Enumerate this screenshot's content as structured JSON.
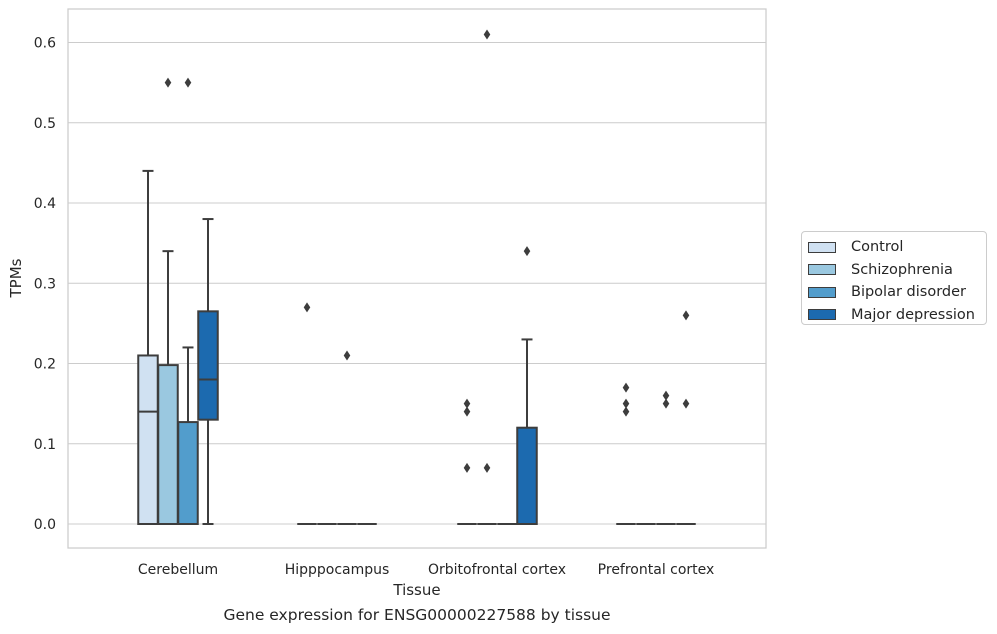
{
  "chart_data": {
    "type": "box",
    "xlabel": "Tissue",
    "ylabel": "TPMs",
    "caption": "Gene expression for ENSG00000227588 by tissue",
    "categories": [
      "Cerebellum",
      "Hipppocampus",
      "Orbitofrontal cortex",
      "Prefrontal cortex"
    ],
    "ylim": [
      -0.03,
      0.645
    ],
    "yticks": [
      0.0,
      0.1,
      0.2,
      0.3,
      0.4,
      0.5,
      0.6
    ],
    "ytick_labels": [
      "0.0",
      "0.1",
      "0.2",
      "0.3",
      "0.4",
      "0.5",
      "0.6"
    ],
    "grid": "horizontal",
    "legend_position": "right",
    "series": [
      {
        "name": "Control",
        "color": "#d0e1f2",
        "boxes": [
          {
            "min": 0.0,
            "q1": 0.0,
            "median": 0.14,
            "q3": 0.21,
            "max": 0.44,
            "outliers": []
          },
          {
            "min": 0.0,
            "q1": 0.0,
            "median": 0.0,
            "q3": 0.0,
            "max": 0.0,
            "outliers": [
              0.27
            ]
          },
          {
            "min": 0.0,
            "q1": 0.0,
            "median": 0.0,
            "q3": 0.0,
            "max": 0.0,
            "outliers": [
              0.15,
              0.14,
              0.07
            ]
          },
          {
            "min": 0.0,
            "q1": 0.0,
            "median": 0.0,
            "q3": 0.0,
            "max": 0.0,
            "outliers": [
              0.17,
              0.15,
              0.14
            ]
          }
        ]
      },
      {
        "name": "Schizophrenia",
        "color": "#9ac8e0",
        "boxes": [
          {
            "min": 0.0,
            "q1": 0.0,
            "median": 0.0,
            "q3": 0.198,
            "max": 0.34,
            "outliers": [
              0.55
            ]
          },
          {
            "min": 0.0,
            "q1": 0.0,
            "median": 0.0,
            "q3": 0.0,
            "max": 0.0,
            "outliers": []
          },
          {
            "min": 0.0,
            "q1": 0.0,
            "median": 0.0,
            "q3": 0.0,
            "max": 0.0,
            "outliers": [
              0.61,
              0.07
            ]
          },
          {
            "min": 0.0,
            "q1": 0.0,
            "median": 0.0,
            "q3": 0.0,
            "max": 0.0,
            "outliers": []
          }
        ]
      },
      {
        "name": "Bipolar disorder",
        "color": "#529dcc",
        "boxes": [
          {
            "min": 0.0,
            "q1": 0.0,
            "median": 0.0,
            "q3": 0.127,
            "max": 0.22,
            "outliers": [
              0.55
            ]
          },
          {
            "min": 0.0,
            "q1": 0.0,
            "median": 0.0,
            "q3": 0.0,
            "max": 0.0,
            "outliers": [
              0.21
            ]
          },
          {
            "min": 0.0,
            "q1": 0.0,
            "median": 0.0,
            "q3": 0.0,
            "max": 0.0,
            "outliers": []
          },
          {
            "min": 0.0,
            "q1": 0.0,
            "median": 0.0,
            "q3": 0.0,
            "max": 0.0,
            "outliers": [
              0.16,
              0.15
            ]
          }
        ]
      },
      {
        "name": "Major depression",
        "color": "#1c6aaf",
        "boxes": [
          {
            "min": 0.0,
            "q1": 0.13,
            "median": 0.18,
            "q3": 0.265,
            "max": 0.38,
            "outliers": []
          },
          {
            "min": 0.0,
            "q1": 0.0,
            "median": 0.0,
            "q3": 0.0,
            "max": 0.0,
            "outliers": []
          },
          {
            "min": 0.0,
            "q1": 0.0,
            "median": 0.0,
            "q3": 0.12,
            "max": 0.23,
            "outliers": [
              0.34
            ]
          },
          {
            "min": 0.0,
            "q1": 0.0,
            "median": 0.0,
            "q3": 0.0,
            "max": 0.0,
            "outliers": [
              0.26,
              0.15
            ]
          }
        ]
      }
    ]
  }
}
